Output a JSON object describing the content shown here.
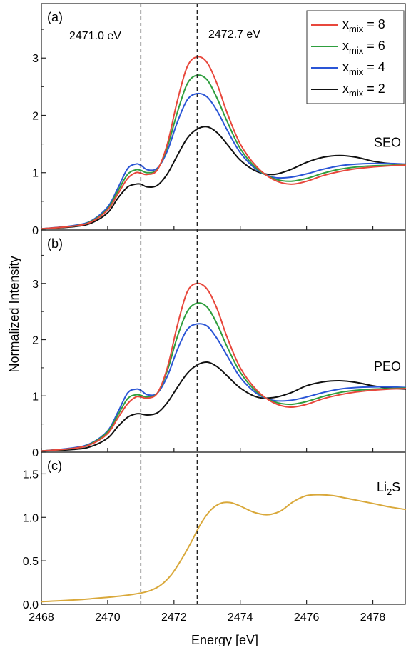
{
  "figure": {
    "ylabel": "Normalized Intensity",
    "xlabel": "Energy [eV]",
    "x_ticks": [
      2468,
      2470,
      2472,
      2474,
      2476,
      2478
    ],
    "xlim": [
      2468,
      2479
    ],
    "reference_lines": [
      {
        "x": 2471.0,
        "label": "2471.0 eV"
      },
      {
        "x": 2472.7,
        "label": "2472.7 eV"
      }
    ],
    "legend": {
      "placement": "top-right",
      "entries": [
        {
          "base": "x",
          "sub": "mix",
          "rest": " = 8",
          "color": "#e8473c"
        },
        {
          "base": "x",
          "sub": "mix",
          "rest": " = 6",
          "color": "#2e9e3e"
        },
        {
          "base": "x",
          "sub": "mix",
          "rest": " = 4",
          "color": "#2a55d6"
        },
        {
          "base": "x",
          "sub": "mix",
          "rest": " = 2",
          "color": "#111111"
        }
      ]
    }
  },
  "chart_data": [
    {
      "type": "line",
      "panel": "(a)",
      "annotation": "SEO",
      "ylim": [
        0,
        3.95
      ],
      "y_ticks": [
        0,
        1,
        2,
        3
      ],
      "y_tick_labels": [
        "0",
        "1",
        "2",
        "3"
      ],
      "x": [
        2468,
        2469,
        2469.5,
        2470,
        2470.3,
        2470.6,
        2470.85,
        2471,
        2471.2,
        2471.5,
        2471.8,
        2472.1,
        2472.4,
        2472.7,
        2473,
        2473.3,
        2473.6,
        2474,
        2474.5,
        2475,
        2475.5,
        2476,
        2476.5,
        2477,
        2477.5,
        2478,
        2478.5,
        2479
      ],
      "series": [
        {
          "name": "x_mix = 8",
          "color": "#e8473c",
          "values": [
            0.02,
            0.07,
            0.14,
            0.35,
            0.62,
            0.9,
            1.0,
            0.99,
            0.97,
            1.05,
            1.5,
            2.25,
            2.85,
            3.02,
            2.92,
            2.55,
            2.05,
            1.5,
            1.1,
            0.88,
            0.8,
            0.85,
            0.95,
            1.02,
            1.07,
            1.1,
            1.12,
            1.13
          ]
        },
        {
          "name": "x_mix = 6",
          "color": "#2e9e3e",
          "values": [
            0.02,
            0.07,
            0.15,
            0.37,
            0.67,
            0.97,
            1.05,
            1.04,
            1.0,
            1.06,
            1.45,
            2.05,
            2.55,
            2.7,
            2.62,
            2.3,
            1.9,
            1.42,
            1.07,
            0.9,
            0.85,
            0.9,
            0.99,
            1.06,
            1.1,
            1.12,
            1.13,
            1.14
          ]
        },
        {
          "name": "x_mix = 4",
          "color": "#2a55d6",
          "values": [
            0.02,
            0.08,
            0.16,
            0.4,
            0.72,
            1.07,
            1.15,
            1.13,
            1.05,
            1.08,
            1.38,
            1.88,
            2.27,
            2.38,
            2.32,
            2.08,
            1.75,
            1.35,
            1.05,
            0.92,
            0.92,
            0.98,
            1.06,
            1.12,
            1.15,
            1.16,
            1.16,
            1.15
          ]
        },
        {
          "name": "x_mix = 2",
          "color": "#111111",
          "values": [
            0.02,
            0.06,
            0.12,
            0.3,
            0.55,
            0.75,
            0.8,
            0.8,
            0.75,
            0.78,
            0.98,
            1.3,
            1.6,
            1.76,
            1.8,
            1.7,
            1.5,
            1.22,
            1.02,
            0.97,
            1.05,
            1.18,
            1.27,
            1.3,
            1.27,
            1.2,
            1.16,
            1.14
          ]
        }
      ]
    },
    {
      "type": "line",
      "panel": "(b)",
      "annotation": "PEO",
      "ylim": [
        0,
        3.95
      ],
      "y_ticks": [
        0,
        1,
        2,
        3
      ],
      "y_tick_labels": [
        "0",
        "1",
        "2",
        "3"
      ],
      "x": [
        2468,
        2469,
        2469.5,
        2470,
        2470.3,
        2470.6,
        2470.85,
        2471,
        2471.2,
        2471.5,
        2471.8,
        2472.1,
        2472.4,
        2472.7,
        2473,
        2473.3,
        2473.6,
        2474,
        2474.5,
        2475,
        2475.5,
        2476,
        2476.5,
        2477,
        2477.5,
        2478,
        2478.5,
        2479
      ],
      "series": [
        {
          "name": "x_mix = 8",
          "color": "#e8473c",
          "values": [
            0.02,
            0.07,
            0.14,
            0.33,
            0.6,
            0.86,
            0.98,
            0.98,
            0.96,
            1.05,
            1.5,
            2.25,
            2.85,
            3.0,
            2.9,
            2.55,
            2.05,
            1.5,
            1.1,
            0.88,
            0.8,
            0.85,
            0.95,
            1.02,
            1.07,
            1.1,
            1.12,
            1.13
          ]
        },
        {
          "name": "x_mix = 6",
          "color": "#2e9e3e",
          "values": [
            0.02,
            0.07,
            0.15,
            0.36,
            0.65,
            0.95,
            1.02,
            1.01,
            0.98,
            1.05,
            1.45,
            2.05,
            2.5,
            2.65,
            2.58,
            2.28,
            1.88,
            1.42,
            1.07,
            0.9,
            0.85,
            0.9,
            0.99,
            1.06,
            1.1,
            1.12,
            1.13,
            1.14
          ]
        },
        {
          "name": "x_mix = 4",
          "color": "#2a55d6",
          "values": [
            0.02,
            0.08,
            0.16,
            0.38,
            0.7,
            1.05,
            1.12,
            1.1,
            1.02,
            1.05,
            1.35,
            1.82,
            2.18,
            2.28,
            2.24,
            2.02,
            1.72,
            1.33,
            1.04,
            0.92,
            0.92,
            0.98,
            1.06,
            1.12,
            1.15,
            1.16,
            1.16,
            1.15
          ]
        },
        {
          "name": "x_mix = 2",
          "color": "#111111",
          "values": [
            0.02,
            0.05,
            0.1,
            0.25,
            0.45,
            0.62,
            0.68,
            0.68,
            0.66,
            0.7,
            0.88,
            1.15,
            1.4,
            1.55,
            1.6,
            1.52,
            1.36,
            1.14,
            0.98,
            0.97,
            1.05,
            1.18,
            1.25,
            1.27,
            1.24,
            1.18,
            1.14,
            1.12
          ]
        }
      ]
    },
    {
      "type": "line",
      "panel": "(c)",
      "annotation": "Li2S",
      "annotation_base": "Li",
      "annotation_sub": "2",
      "annotation_rest": "S",
      "ylim": [
        0,
        1.75
      ],
      "y_ticks": [
        0,
        0.5,
        1.0,
        1.5
      ],
      "y_tick_labels": [
        "0.0",
        "0.5",
        "1.0",
        "1.5"
      ],
      "x": [
        2468,
        2469,
        2470,
        2470.5,
        2471,
        2471.3,
        2471.6,
        2471.9,
        2472.2,
        2472.5,
        2472.8,
        2473.1,
        2473.4,
        2473.7,
        2474,
        2474.4,
        2474.8,
        2475.2,
        2475.6,
        2476,
        2476.4,
        2476.8,
        2477.2,
        2477.6,
        2478,
        2478.5,
        2479
      ],
      "series": [
        {
          "name": "Li2S",
          "color": "#d9a83a",
          "values": [
            0.03,
            0.05,
            0.08,
            0.1,
            0.13,
            0.16,
            0.22,
            0.33,
            0.5,
            0.7,
            0.92,
            1.08,
            1.16,
            1.17,
            1.13,
            1.06,
            1.03,
            1.07,
            1.18,
            1.25,
            1.26,
            1.25,
            1.22,
            1.19,
            1.16,
            1.12,
            1.09
          ]
        }
      ]
    }
  ]
}
